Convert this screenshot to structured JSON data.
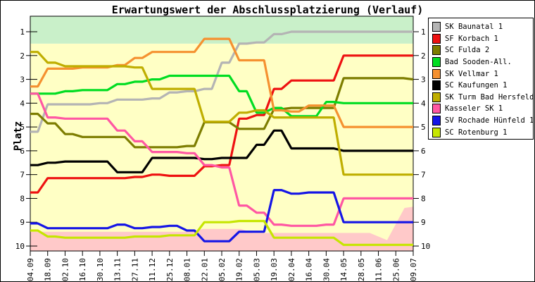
{
  "title": "Erwartungswert der Abschlussplatzierung (Verlauf)",
  "ylabel": "Platz",
  "chart_data": {
    "type": "line",
    "title": "Erwartungswert der Abschlussplatzierung (Verlauf)",
    "xlabel": "",
    "ylabel": "Platz",
    "y_axis_inverted": true,
    "ylim": [
      0.35,
      10.2
    ],
    "grid": false,
    "legend_position": "right",
    "y_ticks": [
      "1",
      "2",
      "3",
      "4",
      "5",
      "6",
      "7",
      "8",
      "9",
      "10"
    ],
    "x_labels": [
      "04.09",
      "18.09",
      "02.10",
      "16.10",
      "30.10",
      "13.11",
      "27.11",
      "11.12",
      "25.12",
      "08.01",
      "22.01",
      "05.02",
      "19.02",
      "05.03",
      "19.03",
      "02.04",
      "16.04",
      "30.04",
      "14.05",
      "28.05",
      "11.06",
      "25.06",
      "09.07"
    ],
    "bands": {
      "promotion_zone": {
        "color": "#c9f0c9",
        "from_rank": 0.35,
        "to_rank": 1.5
      },
      "midfield_zone": {
        "color": "#ffffc5",
        "from_rank": 1.5,
        "to_rank": 10.2
      },
      "relegation_zone": {
        "color": "#ffc9c9",
        "boundary_points_index_rank": [
          [
            0,
            9.4
          ],
          [
            9.3,
            9.4
          ],
          [
            9.9,
            9.28
          ],
          [
            12.1,
            9.28
          ],
          [
            12.8,
            9.45
          ],
          [
            19.5,
            9.45
          ],
          [
            20.5,
            9.75
          ],
          [
            21.5,
            8.4
          ],
          [
            22,
            8.35
          ]
        ]
      }
    },
    "series": [
      {
        "name": "SK Baunatal 1",
        "final_rank": "1",
        "color": "#b4b4b4",
        "values": [
          5.2,
          4.05,
          4.05,
          4.05,
          4.0,
          3.85,
          3.85,
          3.8,
          3.55,
          3.5,
          3.4,
          2.3,
          1.5,
          1.45,
          1.1,
          1.0,
          1.0,
          1.0,
          1.0,
          1.0,
          1.0,
          1.0,
          1.0
        ]
      },
      {
        "name": "SF Korbach 1",
        "final_rank": "2",
        "color": "#ee1111",
        "values": [
          7.75,
          7.15,
          7.15,
          7.15,
          7.15,
          7.15,
          7.1,
          7.0,
          7.05,
          7.05,
          6.65,
          6.6,
          4.65,
          4.5,
          3.4,
          3.05,
          3.05,
          3.05,
          2.0,
          2.0,
          2.0,
          2.0,
          2.0
        ]
      },
      {
        "name": "SC Fulda 2",
        "final_rank": "3",
        "color": "#7d7d00",
        "values": [
          4.45,
          4.85,
          5.3,
          5.42,
          5.42,
          5.42,
          5.85,
          5.85,
          5.85,
          5.8,
          4.8,
          4.8,
          5.08,
          5.08,
          4.25,
          4.2,
          4.2,
          4.2,
          2.95,
          2.95,
          2.95,
          2.95,
          3.0
        ]
      },
      {
        "name": "Bad Sooden-All.",
        "final_rank": "4",
        "color": "#00dd22",
        "values": [
          3.6,
          3.6,
          3.5,
          3.45,
          3.45,
          3.2,
          3.1,
          3.0,
          2.85,
          2.85,
          2.85,
          2.85,
          3.5,
          4.4,
          4.2,
          4.55,
          4.55,
          3.95,
          4.0,
          4.0,
          4.0,
          4.0,
          4.0
        ]
      },
      {
        "name": "SK Vellmar 1",
        "final_rank": "5",
        "color": "#f59130",
        "values": [
          3.3,
          2.55,
          2.55,
          2.5,
          2.5,
          2.4,
          2.1,
          1.85,
          1.85,
          1.85,
          1.3,
          1.3,
          2.2,
          2.2,
          4.3,
          4.35,
          4.1,
          4.1,
          5.0,
          5.0,
          5.0,
          5.0,
          5.0
        ]
      },
      {
        "name": "SC Kaufungen 1",
        "final_rank": "6",
        "color": "#000000",
        "values": [
          6.6,
          6.5,
          6.45,
          6.45,
          6.45,
          6.9,
          6.9,
          6.3,
          6.3,
          6.3,
          6.35,
          6.3,
          6.3,
          5.75,
          5.15,
          5.9,
          5.9,
          5.9,
          6.0,
          6.0,
          6.0,
          6.0,
          6.0
        ]
      },
      {
        "name": "SK Turm Bad Hersfeld",
        "final_rank": "7",
        "color": "#bfae00",
        "values": [
          1.85,
          2.3,
          2.45,
          2.45,
          2.45,
          2.45,
          2.5,
          3.4,
          3.4,
          3.4,
          4.78,
          4.78,
          4.4,
          4.3,
          4.6,
          4.6,
          4.6,
          4.6,
          7.0,
          7.0,
          7.0,
          7.0,
          7.0
        ]
      },
      {
        "name": "Kasseler SK 1",
        "final_rank": "8",
        "color": "#ff57a3",
        "values": [
          3.6,
          4.6,
          4.65,
          4.65,
          4.65,
          5.15,
          5.6,
          6.05,
          6.05,
          6.1,
          6.6,
          6.7,
          8.3,
          8.6,
          9.1,
          9.15,
          9.15,
          9.1,
          8.0,
          8.0,
          8.0,
          8.0,
          8.0
        ]
      },
      {
        "name": "SV Rochade Hünfeld 1",
        "final_rank": "9",
        "color": "#1515e6",
        "values": [
          9.05,
          9.25,
          9.25,
          9.25,
          9.25,
          9.1,
          9.25,
          9.2,
          9.15,
          9.35,
          9.8,
          9.8,
          9.4,
          9.4,
          7.65,
          7.8,
          7.75,
          7.75,
          9.0,
          9.0,
          9.0,
          9.0,
          9.0
        ]
      },
      {
        "name": "SC Rotenburg 1",
        "final_rank": "10",
        "color": "#c6e600",
        "values": [
          9.35,
          9.6,
          9.65,
          9.65,
          9.65,
          9.65,
          9.6,
          9.6,
          9.55,
          9.55,
          9.0,
          9.0,
          8.95,
          8.95,
          9.65,
          9.65,
          9.65,
          9.65,
          9.95,
          9.95,
          9.95,
          9.95,
          9.95
        ]
      }
    ]
  }
}
